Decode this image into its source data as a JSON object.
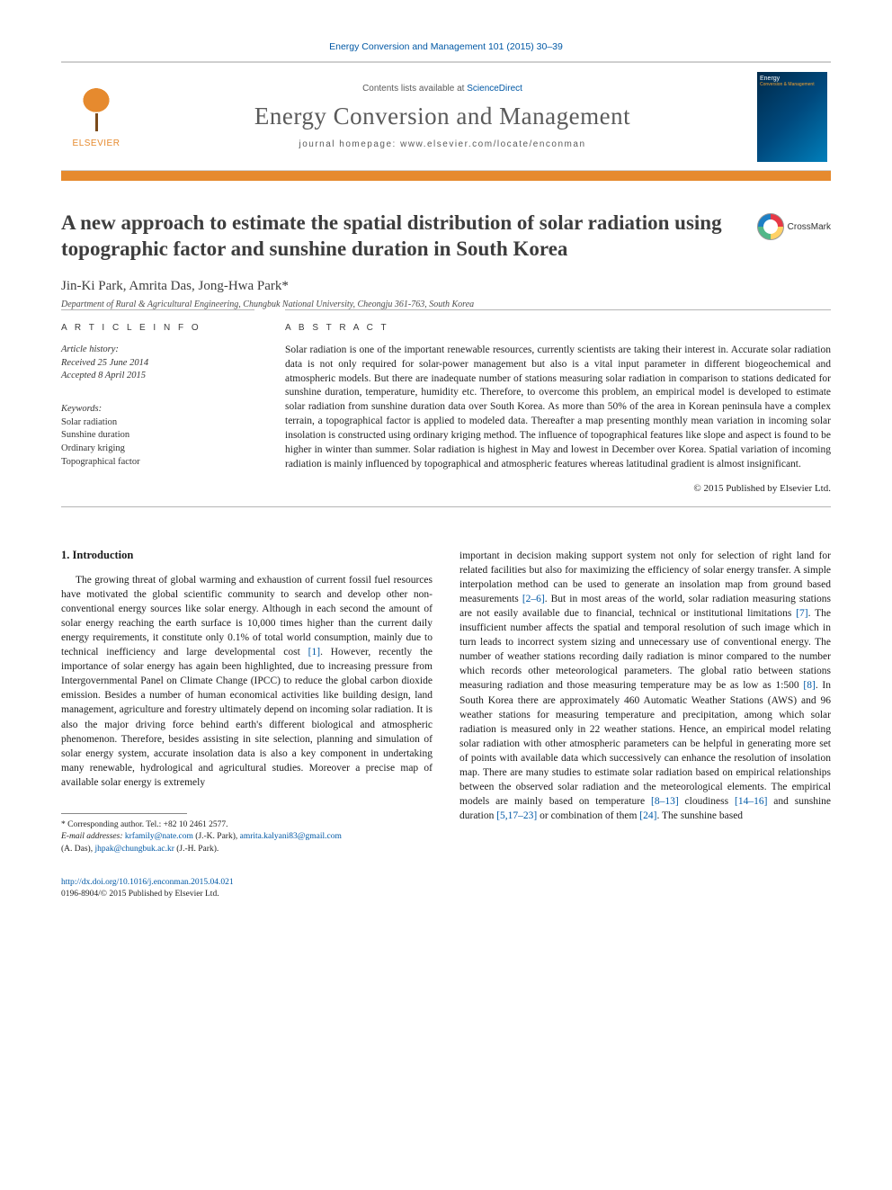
{
  "citation": "Energy Conversion and Management 101 (2015) 30–39",
  "header": {
    "contents_prefix": "Contents lists available at ",
    "contents_link": "ScienceDirect",
    "journal": "Energy Conversion and Management",
    "homepage_label": "journal homepage: www.elsevier.com/locate/enconman",
    "elsevier_word": "ELSEVIER",
    "cover_t1": "Energy",
    "cover_t2": "Conversion & Management"
  },
  "title": "A new approach to estimate the spatial distribution of solar radiation using topographic factor and sunshine duration in South Korea",
  "crossmark": "CrossMark",
  "authors": "Jin-Ki Park, Amrita Das, Jong-Hwa Park",
  "corr_mark": "*",
  "affiliation": "Department of Rural & Agricultural Engineering, Chungbuk National University, Cheongju 361-763, South Korea",
  "meta": {
    "head": "A R T I C L E   I N F O",
    "history_label": "Article history:",
    "received": "Received 25 June 2014",
    "accepted": "Accepted 8 April 2015",
    "kw_label": "Keywords:",
    "kw": [
      "Solar radiation",
      "Sunshine duration",
      "Ordinary kriging",
      "Topographical factor"
    ]
  },
  "abstract": {
    "head": "A B S T R A C T",
    "text": "Solar radiation is one of the important renewable resources, currently scientists are taking their interest in. Accurate solar radiation data is not only required for solar-power management but also is a vital input parameter in different biogeochemical and atmospheric models. But there are inadequate number of stations measuring solar radiation in comparison to stations dedicated for sunshine duration, temperature, humidity etc. Therefore, to overcome this problem, an empirical model is developed to estimate solar radiation from sunshine duration data over South Korea. As more than 50% of the area in Korean peninsula have a complex terrain, a topographical factor is applied to modeled data. Thereafter a map presenting monthly mean variation in incoming solar insolation is constructed using ordinary kriging method. The influence of topographical features like slope and aspect is found to be higher in winter than summer. Solar radiation is highest in May and lowest in December over Korea. Spatial variation of incoming radiation is mainly influenced by topographical and atmospheric features whereas latitudinal gradient is almost insignificant.",
    "copyright": "© 2015 Published by Elsevier Ltd."
  },
  "section1": {
    "head": "1. Introduction",
    "p1a": "The growing threat of global warming and exhaustion of current fossil fuel resources have motivated the global scientific community to search and develop other non-conventional energy sources like solar energy. Although in each second the amount of solar energy reaching the earth surface is 10,000 times higher than the current daily energy requirements, it constitute only 0.1% of total world consumption, mainly due to technical inefficiency and large developmental cost ",
    "ref1": "[1]",
    "p1b": ". However, recently the importance of solar energy has again been highlighted, due to increasing pressure from Intergovernmental Panel on Climate Change (IPCC) to reduce the global carbon dioxide emission. Besides a number of human economical activities like building design, land management, agriculture and forestry ultimately depend on incoming solar radiation. It is also the major driving force behind earth's different biological and atmospheric phenomenon. Therefore, besides assisting in site selection, planning and simulation of solar energy system, accurate insolation data is also a key component in undertaking many renewable, hydrological and agricultural studies. Moreover a precise map of available solar energy is extremely",
    "p2a": "important in decision making support system not only for selection of right land for related facilities but also for maximizing the efficiency of solar energy transfer. A simple interpolation method can be used to generate an insolation map from ground based measurements ",
    "ref26": "[2–6]",
    "p2b": ". But in most areas of the world, solar radiation measuring stations are not easily available due to financial, technical or institutional limitations ",
    "ref7": "[7]",
    "p2c": ". The insufficient number affects the spatial and temporal resolution of such image which in turn leads to incorrect system sizing and unnecessary use of conventional energy. The number of weather stations recording daily radiation is minor compared to the number which records other meteorological parameters. The global ratio between stations measuring radiation and those measuring temperature may be as low as 1:500 ",
    "ref8": "[8]",
    "p2d": ". In South Korea there are approximately 460 Automatic Weather Stations (AWS) and 96 weather stations for measuring temperature and precipitation, among which solar radiation is measured only in 22 weather stations. Hence, an empirical model relating solar radiation with other atmospheric parameters can be helpful in generating more set of points with available data which successively can enhance the resolution of insolation map. There are many studies to estimate solar radiation based on empirical relationships between the observed solar radiation and the meteorological elements. The empirical models are mainly based on temperature ",
    "ref813": "[8–13]",
    "p2e": " cloudiness ",
    "ref1416": "[14–16]",
    "p2f": " and sunshine duration ",
    "ref51723": "[5,17–23]",
    "p2g": " or combination of them ",
    "ref24": "[24]",
    "p2h": ". The sunshine based"
  },
  "footnote": {
    "corr": "* Corresponding author. Tel.: +82 10 2461 2577.",
    "email_label": "E-mail addresses: ",
    "e1": "krfamily@nate.com",
    "n1": " (J.-K. Park), ",
    "e2": "amrita.kalyani83@gmail.com",
    "n2": " (A. Das), ",
    "e3": "jhpak@chungbuk.ac.kr",
    "n3": " (J.-H. Park)."
  },
  "doi": {
    "url": "http://dx.doi.org/10.1016/j.enconman.2015.04.021",
    "issn": "0196-8904/© 2015 Published by Elsevier Ltd."
  }
}
